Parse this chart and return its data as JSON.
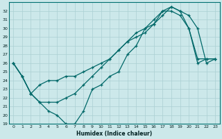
{
  "xlabel": "Humidex (Indice chaleur)",
  "xlim": [
    -0.5,
    23.5
  ],
  "ylim": [
    19,
    33
  ],
  "yticks": [
    19,
    20,
    21,
    22,
    23,
    24,
    25,
    26,
    27,
    28,
    29,
    30,
    31,
    32
  ],
  "xticks": [
    0,
    1,
    2,
    3,
    4,
    5,
    6,
    7,
    8,
    9,
    10,
    11,
    12,
    13,
    14,
    15,
    16,
    17,
    18,
    19,
    20,
    21,
    22,
    23
  ],
  "bg_color": "#cce8ea",
  "line_color": "#006868",
  "grid_color": "#aacfd2",
  "line1_y": [
    26.0,
    24.5,
    22.5,
    21.5,
    20.5,
    20.0,
    19.0,
    19.0,
    20.5,
    23.0,
    23.5,
    24.5,
    25.0,
    27.0,
    28.0,
    30.0,
    31.0,
    32.0,
    32.0,
    31.5,
    30.0,
    26.0,
    26.5,
    26.5
  ],
  "line2_y": [
    26.0,
    24.5,
    22.5,
    23.5,
    24.0,
    24.0,
    24.5,
    24.5,
    25.0,
    25.5,
    26.0,
    26.5,
    27.5,
    28.5,
    29.5,
    30.0,
    30.5,
    31.5,
    32.5,
    32.0,
    30.0,
    26.5,
    26.5,
    26.5
  ],
  "line3_y": [
    26.0,
    24.5,
    22.5,
    21.5,
    21.5,
    21.5,
    22.0,
    22.5,
    23.5,
    24.5,
    25.5,
    26.5,
    27.5,
    28.5,
    29.0,
    29.5,
    30.5,
    32.0,
    32.5,
    32.0,
    31.5,
    30.0,
    26.0,
    26.5
  ]
}
